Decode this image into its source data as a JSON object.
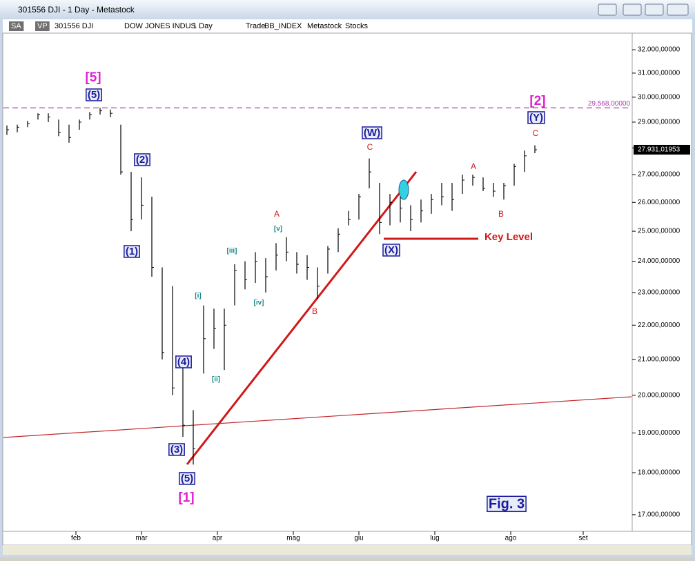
{
  "window": {
    "title": "301556 DJI - 1 Day - Metastock",
    "toolbar": [
      "SA",
      "VP",
      "301556 DJI",
      "DOW JONES INDUS",
      "1 Day",
      "Trade",
      "BB_INDEX",
      "Metastock",
      "Stocks"
    ]
  },
  "chart_data": {
    "type": "ohlc",
    "log_scale": true,
    "color": "#000000",
    "x": [
      1,
      4,
      7,
      10,
      13,
      16,
      19,
      22,
      25,
      28,
      31,
      34,
      37,
      40,
      43,
      46,
      49,
      52,
      55,
      58,
      61,
      64,
      67,
      70,
      73,
      76,
      79,
      82,
      85,
      88,
      91,
      94,
      97,
      100,
      103,
      106,
      109,
      112,
      115,
      118,
      121,
      124,
      127,
      130,
      133,
      136,
      139,
      142,
      145,
      148,
      151,
      154
    ],
    "high": [
      28870,
      28900,
      29050,
      29350,
      29350,
      29100,
      28900,
      29100,
      29400,
      29570,
      29500,
      28900,
      27100,
      26900,
      26200,
      23800,
      23200,
      20800,
      19600,
      22600,
      22500,
      22500,
      23900,
      24000,
      24300,
      24100,
      24600,
      24800,
      24300,
      24200,
      23800,
      24500,
      25100,
      25700,
      26300,
      27600,
      26700,
      26300,
      26200,
      25900,
      26100,
      26300,
      26700,
      26700,
      27000,
      27000,
      26900,
      26700,
      26700,
      27400,
      27900,
      28100
    ],
    "low": [
      28500,
      28600,
      28800,
      29100,
      29000,
      28450,
      28200,
      28700,
      29100,
      29300,
      29200,
      27000,
      25000,
      25400,
      23500,
      21000,
      20000,
      18900,
      18200,
      20600,
      21300,
      20700,
      22600,
      23100,
      23300,
      23000,
      23700,
      24000,
      23600,
      23400,
      22800,
      23600,
      24300,
      25200,
      25400,
      26500,
      24900,
      25200,
      25300,
      25000,
      25300,
      25600,
      25900,
      25700,
      26300,
      26600,
      26400,
      26200,
      26100,
      26600,
      27100,
      27800
    ],
    "close": [
      28700,
      28800,
      28950,
      29300,
      29200,
      28600,
      28400,
      29000,
      29300,
      29450,
      29350,
      27100,
      25400,
      25900,
      23800,
      21200,
      20200,
      19200,
      18600,
      21600,
      21900,
      22000,
      23700,
      23400,
      24000,
      23500,
      24200,
      24300,
      23900,
      23800,
      23200,
      24400,
      24900,
      25400,
      26200,
      27100,
      25300,
      26000,
      25800,
      25400,
      25700,
      26100,
      26200,
      26100,
      26800,
      26900,
      26500,
      26400,
      26600,
      27300,
      27700,
      27930
    ],
    "xlim": [
      0,
      182
    ],
    "xticks": [
      {
        "value": 21,
        "label": "feb"
      },
      {
        "value": 40,
        "label": "mar"
      },
      {
        "value": 62,
        "label": "apr"
      },
      {
        "value": 84,
        "label": "mag"
      },
      {
        "value": 103,
        "label": "giu"
      },
      {
        "value": 125,
        "label": "lug"
      },
      {
        "value": 147,
        "label": "ago"
      },
      {
        "value": 168,
        "label": "set"
      }
    ],
    "ylim": [
      16620,
      33290
    ],
    "yticks": [
      {
        "value": 17000,
        "label": "17.000,00000"
      },
      {
        "value": 18000,
        "label": "18.000,00000"
      },
      {
        "value": 19000,
        "label": "19.000,00000"
      },
      {
        "value": 20000,
        "label": "20.000,00000"
      },
      {
        "value": 21000,
        "label": "21.000,00000"
      },
      {
        "value": 22000,
        "label": "22.000,00000"
      },
      {
        "value": 23000,
        "label": "23.000,00000"
      },
      {
        "value": 24000,
        "label": "24.000,00000"
      },
      {
        "value": 25000,
        "label": "25.000,00000"
      },
      {
        "value": 26000,
        "label": "26.000,00000"
      },
      {
        "value": 27000,
        "label": "27.000,00000"
      },
      {
        "value": 28000,
        "label": "28.000,00000"
      },
      {
        "value": 29000,
        "label": "29.000,00000"
      },
      {
        "value": 30000,
        "label": "30.000,00000"
      },
      {
        "value": 31000,
        "label": "31.000,00000"
      },
      {
        "value": 32000,
        "label": "32.000,00000"
      }
    ],
    "hline": {
      "value": 29568,
      "label": "29.568,00000"
    },
    "last_price": {
      "value": 27931.01953,
      "label": "27.931,01953"
    },
    "annotations": [
      "[5]",
      "(5)",
      "(2)",
      "(1)",
      "(4)",
      "(3)",
      "(5)",
      "[1]",
      "[i]",
      "[ii]",
      "[iii]",
      "[iv]",
      "[v]",
      "A",
      "B",
      "(W)",
      "C",
      "(X)",
      "A",
      "B",
      "C",
      "(Y)",
      "[2]",
      "Key Level",
      "Fig. 3"
    ]
  }
}
